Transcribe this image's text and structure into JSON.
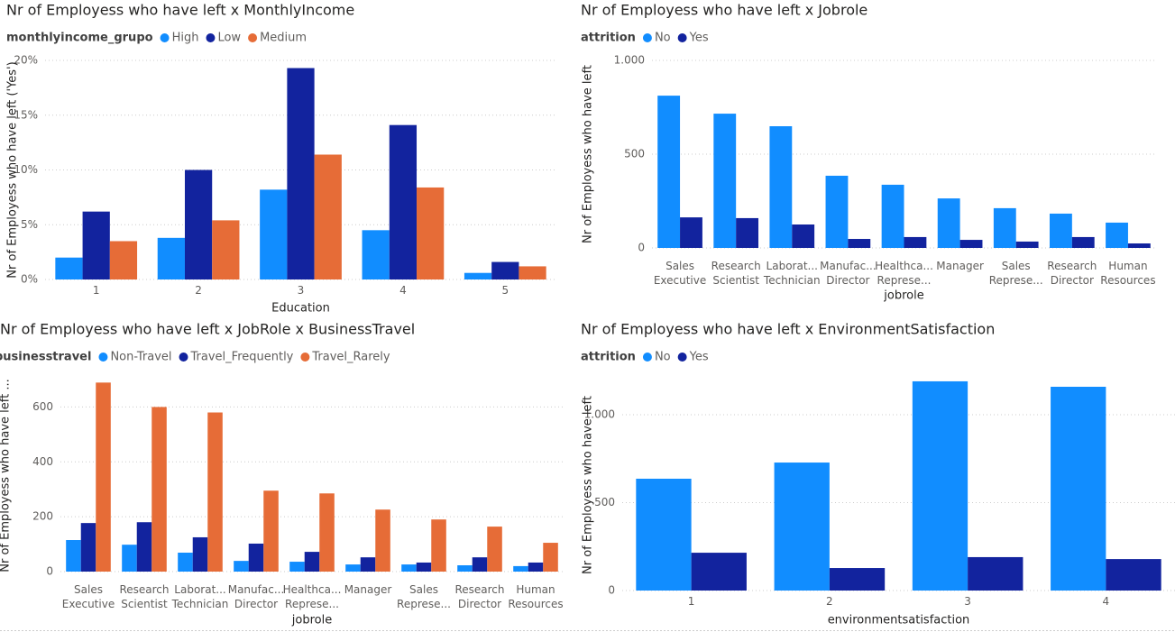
{
  "chart_data": [
    {
      "type": "bar",
      "title": "Nr of Employess who have left x MonthlyIncome",
      "legend_title": "monthlyincome_grupo",
      "x_label": "Education",
      "y_label": "Nr of Employess who have left ('Yes')",
      "categories": [
        [
          "1"
        ],
        [
          "2"
        ],
        [
          "3"
        ],
        [
          "4"
        ],
        [
          "5"
        ]
      ],
      "series": [
        {
          "name": "High",
          "color": "#118DFF",
          "values": [
            2.0,
            3.8,
            8.2,
            4.5,
            0.6
          ]
        },
        {
          "name": "Low",
          "color": "#12239E",
          "values": [
            6.2,
            10.0,
            19.3,
            14.1,
            1.6
          ]
        },
        {
          "name": "Medium",
          "color": "#E66C37",
          "values": [
            3.5,
            5.4,
            11.4,
            8.4,
            1.2
          ]
        }
      ],
      "ylim": [
        0,
        20
      ],
      "yticks": [
        {
          "value": 0,
          "label": "0%"
        },
        {
          "value": 5,
          "label": "5%"
        },
        {
          "value": 10,
          "label": "10%"
        },
        {
          "value": 15,
          "label": "15%"
        },
        {
          "value": 20,
          "label": "20%"
        }
      ],
      "grid": true
    },
    {
      "type": "bar",
      "title": "Nr of Employess who have left x Jobrole",
      "legend_title": "attrition",
      "x_label": "jobrole",
      "y_label": "Nr of Employess who have left",
      "categories": [
        [
          "Sales",
          "Executive"
        ],
        [
          "Research",
          "Scientist"
        ],
        [
          "Laborat...",
          "Technician"
        ],
        [
          "Manufac...",
          "Director"
        ],
        [
          "Healthca...",
          "Represe..."
        ],
        [
          "Manager"
        ],
        [
          "Sales",
          "Represe..."
        ],
        [
          "Research",
          "Director"
        ],
        [
          "Human",
          "Resources"
        ]
      ],
      "series": [
        {
          "name": "No",
          "color": "#118DFF",
          "values": [
            812,
            716,
            649,
            385,
            337,
            264,
            212,
            183,
            135
          ]
        },
        {
          "name": "Yes",
          "color": "#12239E",
          "values": [
            163,
            159,
            125,
            48,
            58,
            43,
            34,
            58,
            24
          ]
        }
      ],
      "ylim": [
        0,
        1000
      ],
      "yticks": [
        0,
        500,
        {
          "value": 1000,
          "label": "1.000"
        }
      ],
      "grid": true
    },
    {
      "type": "bar",
      "title": "Nr of Employess who have left x JobRole x BusinessTravel",
      "legend_title": "businesstravel",
      "x_label": "jobrole",
      "y_label": "Nr of Employess who have left ...",
      "categories": [
        [
          "Sales",
          "Executive"
        ],
        [
          "Research",
          "Scientist"
        ],
        [
          "Laborat...",
          "Technician"
        ],
        [
          "Manufac...",
          "Director"
        ],
        [
          "Healthca...",
          "Represe..."
        ],
        [
          "Manager"
        ],
        [
          "Sales",
          "Represe..."
        ],
        [
          "Research",
          "Director"
        ],
        [
          "Human",
          "Resources"
        ]
      ],
      "series": [
        {
          "name": "Non-Travel",
          "color": "#118DFF",
          "values": [
            115,
            98,
            69,
            39,
            36,
            26,
            26,
            23,
            20
          ]
        },
        {
          "name": "Travel_Frequently",
          "color": "#12239E",
          "values": [
            177,
            180,
            125,
            102,
            72,
            52,
            33,
            52,
            33
          ]
        },
        {
          "name": "Travel_Rarely",
          "color": "#E66C37",
          "values": [
            689,
            600,
            580,
            295,
            285,
            226,
            190,
            164,
            105
          ]
        }
      ],
      "ylim": [
        0,
        700
      ],
      "yticks": [
        0,
        200,
        400,
        600
      ],
      "grid": true
    },
    {
      "type": "bar",
      "title": "Nr of Employess who have left x EnvironmentSatisfaction",
      "legend_title": "attrition",
      "x_label": "environmentsatisfaction",
      "y_label": "Nr of Employess who have left",
      "categories": [
        [
          "1"
        ],
        [
          "2"
        ],
        [
          "3"
        ],
        [
          "4"
        ]
      ],
      "series": [
        {
          "name": "No",
          "color": "#118DFF",
          "values": [
            636,
            728,
            1190,
            1159
          ]
        },
        {
          "name": "Yes",
          "color": "#12239E",
          "values": [
            215,
            128,
            190,
            179
          ]
        }
      ],
      "ylim": [
        0,
        1200
      ],
      "yticks": [
        0,
        500,
        {
          "value": 1000,
          "label": "1.000"
        }
      ],
      "grid": true
    }
  ]
}
